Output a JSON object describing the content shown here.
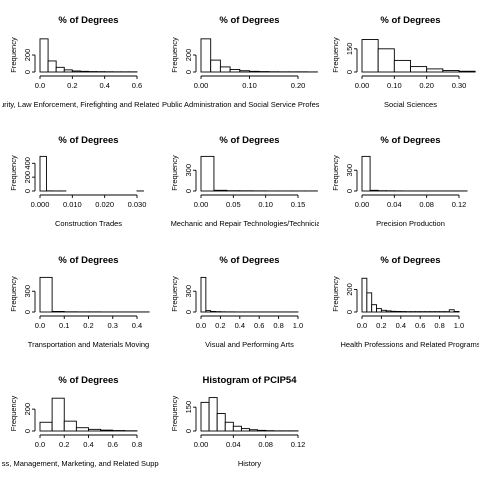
{
  "chart_data": [
    {
      "type": "bar",
      "title": "% of Degrees",
      "xlabel": "Homeland Security, Law Enforcement, Firefighting and Related Protective Services",
      "ylabel": "Frequency",
      "xlim": [
        0,
        0.6
      ],
      "ylim": [
        0,
        400
      ],
      "xticks": [
        "0.0",
        "0.2",
        "0.4",
        "0.6"
      ],
      "yticks": [
        "0",
        "200"
      ],
      "bin_width": 0.05,
      "values": [
        390,
        130,
        55,
        25,
        12,
        8,
        5,
        4,
        3,
        2,
        2,
        2
      ]
    },
    {
      "type": "bar",
      "title": "% of Degrees",
      "xlabel": "Public Administration and Social Service Professions",
      "ylabel": "Frequency",
      "xlim": [
        0,
        0.2
      ],
      "ylim": [
        0,
        400
      ],
      "xticks": [
        "0.00",
        "0.10",
        "0.20"
      ],
      "yticks": [
        "0",
        "200"
      ],
      "bin_width": 0.02,
      "values": [
        390,
        140,
        60,
        30,
        15,
        8,
        5,
        3,
        2,
        2,
        2,
        1
      ]
    },
    {
      "type": "bar",
      "title": "% of Degrees",
      "xlabel": "Social Sciences",
      "ylabel": "Frequency",
      "xlim": [
        0,
        0.3
      ],
      "ylim": [
        0,
        220
      ],
      "xticks": [
        "0.00",
        "0.10",
        "0.20",
        "0.30"
      ],
      "yticks": [
        "0",
        "150"
      ],
      "bin_width": 0.05,
      "values": [
        210,
        150,
        75,
        35,
        20,
        10,
        5
      ]
    },
    {
      "type": "bar",
      "title": "% of Degrees",
      "xlabel": "Construction Trades",
      "ylabel": "Frequency",
      "xlim": [
        0,
        0.03
      ],
      "ylim": [
        0,
        520
      ],
      "xticks": [
        "0.000",
        "0.010",
        "0.020",
        "0.030"
      ],
      "yticks": [
        "0",
        "200",
        "400"
      ],
      "bin_width": 0.002,
      "values": [
        500,
        2,
        1,
        1,
        0,
        0,
        0,
        0,
        0,
        0,
        0,
        0,
        0,
        0,
        0,
        1
      ]
    },
    {
      "type": "bar",
      "title": "% of Degrees",
      "xlabel": "Mechanic and Repair Technologies/Technicians",
      "ylabel": "Frequency",
      "xlim": [
        0,
        0.15
      ],
      "ylim": [
        0,
        520
      ],
      "xticks": [
        "0.00",
        "0.05",
        "0.10",
        "0.15"
      ],
      "yticks": [
        "0",
        "300"
      ],
      "bin_width": 0.02,
      "values": [
        500,
        10,
        4,
        3,
        2,
        1,
        1,
        1,
        1
      ]
    },
    {
      "type": "bar",
      "title": "% of Degrees",
      "xlabel": "Precision Production",
      "ylabel": "Frequency",
      "xlim": [
        0,
        0.12
      ],
      "ylim": [
        0,
        520
      ],
      "xticks": [
        "0.00",
        "0.04",
        "0.08",
        "0.12"
      ],
      "yticks": [
        "0",
        "300"
      ],
      "bin_width": 0.01,
      "values": [
        500,
        10,
        4,
        3,
        2,
        1,
        1,
        1,
        1,
        1,
        1,
        1,
        1
      ]
    },
    {
      "type": "bar",
      "title": "% of Degrees",
      "xlabel": "Transportation and Materials Moving",
      "ylabel": "Frequency",
      "xlim": [
        0,
        0.4
      ],
      "ylim": [
        0,
        520
      ],
      "xticks": [
        "0.0",
        "0.1",
        "0.2",
        "0.3",
        "0.4"
      ],
      "yticks": [
        "0",
        "300"
      ],
      "bin_width": 0.05,
      "values": [
        500,
        8,
        3,
        2,
        2,
        1,
        1,
        1,
        1
      ]
    },
    {
      "type": "bar",
      "title": "% of Degrees",
      "xlabel": "Visual and Performing Arts",
      "ylabel": "Frequency",
      "xlim": [
        0,
        1.0
      ],
      "ylim": [
        0,
        520
      ],
      "xticks": [
        "0.0",
        "0.2",
        "0.4",
        "0.6",
        "0.8",
        "1.0"
      ],
      "yticks": [
        "0",
        "300"
      ],
      "bin_width": 0.05,
      "values": [
        500,
        20,
        8,
        5,
        3,
        2,
        2,
        1,
        1,
        1,
        1,
        1,
        1,
        1,
        1,
        1,
        1,
        1,
        1,
        1
      ]
    },
    {
      "type": "bar",
      "title": "% of Degrees",
      "xlabel": "Health Professions and Related Programs",
      "ylabel": "Frequency",
      "xlim": [
        0,
        1.0
      ],
      "ylim": [
        0,
        320
      ],
      "xticks": [
        "0.0",
        "0.2",
        "0.4",
        "0.6",
        "0.8",
        "1.0"
      ],
      "yticks": [
        "0",
        "200"
      ],
      "bin_width": 0.05,
      "values": [
        300,
        170,
        65,
        30,
        15,
        10,
        6,
        5,
        4,
        3,
        3,
        3,
        3,
        3,
        3,
        3,
        3,
        3,
        20,
        5
      ]
    },
    {
      "type": "bar",
      "title": "% of Degrees",
      "xlabel": "Business, Management, Marketing, and Related Support Services",
      "ylabel": "Frequency",
      "xlim": [
        0,
        0.8
      ],
      "ylim": [
        0,
        320
      ],
      "xticks": [
        "0.0",
        "0.2",
        "0.4",
        "0.6",
        "0.8"
      ],
      "yticks": [
        "0",
        "200"
      ],
      "bin_width": 0.1,
      "values": [
        80,
        300,
        90,
        30,
        15,
        8,
        4,
        2
      ]
    },
    {
      "type": "bar",
      "title": "Histogram of PCIP54",
      "xlabel": "History",
      "ylabel": "Frequency",
      "xlim": [
        0,
        0.12
      ],
      "ylim": [
        0,
        220
      ],
      "xticks": [
        "0.00",
        "0.04",
        "0.08",
        "0.12"
      ],
      "yticks": [
        "0",
        "150"
      ],
      "bin_width": 0.01,
      "values": [
        180,
        210,
        110,
        55,
        30,
        15,
        8,
        4,
        2,
        1,
        1,
        1
      ]
    }
  ]
}
